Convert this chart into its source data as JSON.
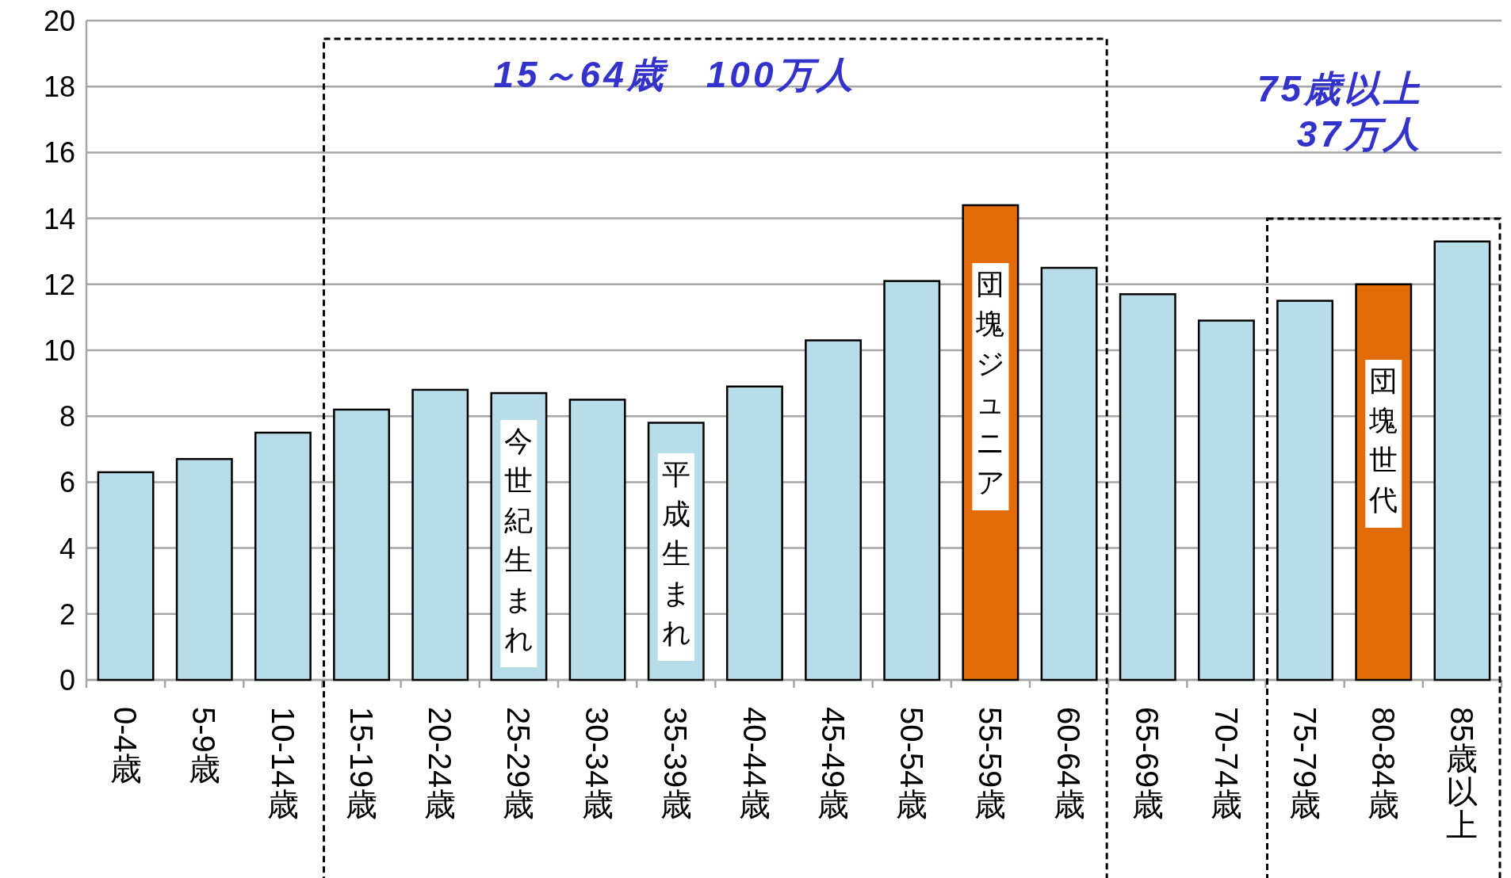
{
  "chart_data": {
    "type": "bar",
    "categories": [
      "0-4歳",
      "5-9歳",
      "10-14歳",
      "15-19歳",
      "20-24歳",
      "25-29歳",
      "30-34歳",
      "35-39歳",
      "40-44歳",
      "45-49歳",
      "50-54歳",
      "55-59歳",
      "60-64歳",
      "65-69歳",
      "70-74歳",
      "75-79歳",
      "80-84歳",
      "85歳以上"
    ],
    "values": [
      6.3,
      6.7,
      7.5,
      8.2,
      8.8,
      8.7,
      8.5,
      7.8,
      8.9,
      10.3,
      12.1,
      14.4,
      12.5,
      11.7,
      10.9,
      11.5,
      12.0,
      13.3
    ],
    "colors": [
      "#b7dde8",
      "#b7dde8",
      "#b7dde8",
      "#b7dde8",
      "#b7dde8",
      "#b7dde8",
      "#b7dde8",
      "#b7dde8",
      "#b7dde8",
      "#b7dde8",
      "#b7dde8",
      "#e36c09",
      "#b7dde8",
      "#b7dde8",
      "#b7dde8",
      "#b7dde8",
      "#e36c09",
      "#b7dde8"
    ],
    "ylim": [
      0,
      20
    ],
    "yticks": [
      0,
      2,
      4,
      6,
      8,
      10,
      12,
      14,
      16,
      18,
      20
    ],
    "grid": "y",
    "annotations": [
      "15～64歳　100万人",
      "75歳以上\n37万人",
      "今世紀生まれ",
      "平成生まれ",
      "団塊ジュニア",
      "団塊世代"
    ]
  }
}
